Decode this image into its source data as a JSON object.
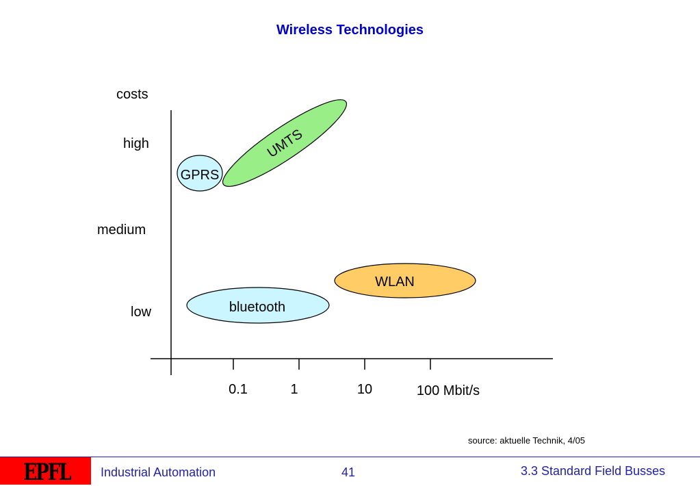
{
  "title": "Wireless Technologies",
  "y_axis": {
    "title": "costs",
    "levels": [
      "high",
      "medium",
      "low"
    ]
  },
  "x_axis": {
    "ticks": [
      "0.1",
      "1",
      "10",
      "100 Mbit/s"
    ]
  },
  "technologies": [
    {
      "name": "UMTS",
      "color": "#99ee88"
    },
    {
      "name": "GPRS",
      "color": "#ccf6ff"
    },
    {
      "name": "WLAN",
      "color": "#ffcc66"
    },
    {
      "name": "bluetooth",
      "color": "#ccf6ff"
    }
  ],
  "source": "source: aktuelle Technik, 4/05",
  "footer": {
    "logo": "EPFL",
    "course": "Industrial Automation",
    "page": "41",
    "section": "3.3 Standard Field Busses"
  },
  "colors": {
    "title": "#0000cc",
    "footer_text": "#2222aa",
    "logo_bg": "#ff0000"
  }
}
